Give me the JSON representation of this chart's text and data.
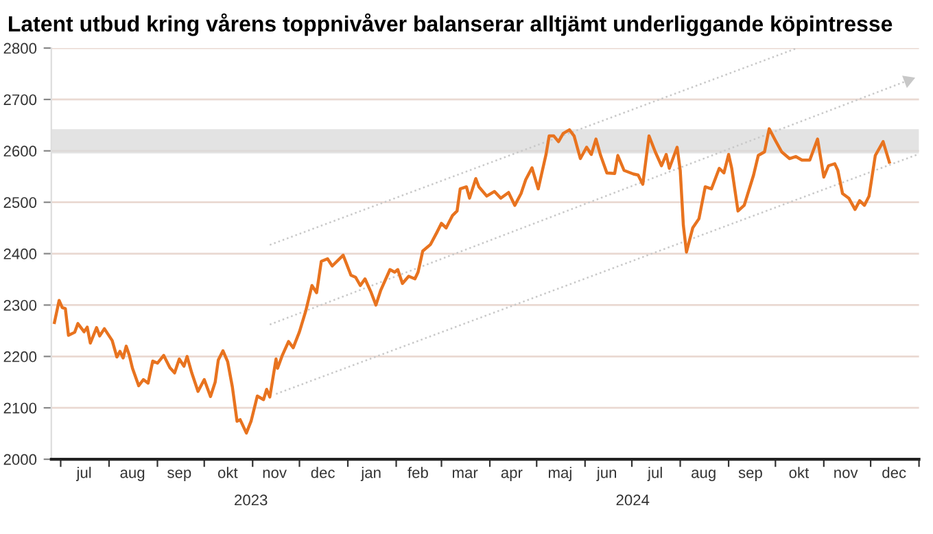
{
  "chart_data": {
    "type": "line",
    "title": "Latent utbud kring vårens toppnivåver balanserar alltjämt underliggande köpintresse",
    "x": [
      "2023-06-27",
      "2023-06-30",
      "2023-07-02",
      "2023-07-04",
      "2023-07-06",
      "2023-07-10",
      "2023-07-12",
      "2023-07-16",
      "2023-07-18",
      "2023-07-20",
      "2023-07-24",
      "2023-07-26",
      "2023-07-29",
      "2023-08-03",
      "2023-08-06",
      "2023-08-08",
      "2023-08-10",
      "2023-08-12",
      "2023-08-14",
      "2023-08-16",
      "2023-08-20",
      "2023-08-23",
      "2023-08-26",
      "2023-08-29",
      "2023-09-01",
      "2023-09-05",
      "2023-09-09",
      "2023-09-12",
      "2023-09-15",
      "2023-09-18",
      "2023-09-20",
      "2023-09-23",
      "2023-09-27",
      "2023-10-01",
      "2023-10-05",
      "2023-10-08",
      "2023-10-10",
      "2023-10-13",
      "2023-10-16",
      "2023-10-19",
      "2023-10-22",
      "2023-10-24",
      "2023-10-28",
      "2023-10-31",
      "2023-11-04",
      "2023-11-08",
      "2023-11-10",
      "2023-11-12",
      "2023-11-16",
      "2023-11-17",
      "2023-11-20",
      "2023-11-24",
      "2023-11-27",
      "2023-12-01",
      "2023-12-05",
      "2023-12-09",
      "2023-12-12",
      "2023-12-15",
      "2023-12-19",
      "2023-12-22",
      "2023-12-29",
      "2024-01-03",
      "2024-01-06",
      "2024-01-09",
      "2024-01-12",
      "2024-01-16",
      "2024-01-19",
      "2024-01-22",
      "2024-01-28",
      "2024-01-31",
      "2024-02-02",
      "2024-02-05",
      "2024-02-09",
      "2024-02-13",
      "2024-02-15",
      "2024-02-18",
      "2024-02-23",
      "2024-02-27",
      "2024-03-01",
      "2024-03-04",
      "2024-03-08",
      "2024-03-11",
      "2024-03-13",
      "2024-03-17",
      "2024-03-19",
      "2024-03-23",
      "2024-03-25",
      "2024-03-30",
      "2024-04-04",
      "2024-04-08",
      "2024-04-13",
      "2024-04-17",
      "2024-04-21",
      "2024-04-24",
      "2024-04-28",
      "2024-05-02",
      "2024-05-07",
      "2024-05-09",
      "2024-05-12",
      "2024-05-15",
      "2024-05-18",
      "2024-05-22",
      "2024-05-25",
      "2024-05-29",
      "2024-06-02",
      "2024-06-05",
      "2024-06-08",
      "2024-06-11",
      "2024-06-15",
      "2024-06-20",
      "2024-06-22",
      "2024-06-26",
      "2024-07-02",
      "2024-07-05",
      "2024-07-08",
      "2024-07-12",
      "2024-07-16",
      "2024-07-20",
      "2024-07-23",
      "2024-07-25",
      "2024-07-30",
      "2024-08-01",
      "2024-08-03",
      "2024-08-05",
      "2024-08-09",
      "2024-08-13",
      "2024-08-17",
      "2024-08-21",
      "2024-08-26",
      "2024-08-29",
      "2024-09-01",
      "2024-09-03",
      "2024-09-07",
      "2024-09-11",
      "2024-09-17",
      "2024-09-20",
      "2024-09-24",
      "2024-09-27",
      "2024-10-01",
      "2024-10-05",
      "2024-10-10",
      "2024-10-14",
      "2024-10-18",
      "2024-10-23",
      "2024-10-28",
      "2024-11-01",
      "2024-11-04",
      "2024-11-08",
      "2024-11-10",
      "2024-11-13",
      "2024-11-17",
      "2024-11-21",
      "2024-11-24",
      "2024-11-27",
      "2024-11-30",
      "2024-12-04",
      "2024-12-09",
      "2024-12-13"
    ],
    "series": [
      {
        "color": "#e8731f",
        "values": [
          2266,
          2309,
          2295,
          2293,
          2241,
          2247,
          2264,
          2248,
          2257,
          2226,
          2256,
          2240,
          2254,
          2231,
          2199,
          2210,
          2197,
          2220,
          2202,
          2177,
          2143,
          2155,
          2148,
          2191,
          2187,
          2202,
          2178,
          2168,
          2195,
          2181,
          2200,
          2168,
          2132,
          2155,
          2122,
          2150,
          2193,
          2211,
          2190,
          2141,
          2074,
          2077,
          2051,
          2074,
          2123,
          2116,
          2136,
          2121,
          2195,
          2177,
          2202,
          2229,
          2217,
          2248,
          2288,
          2338,
          2324,
          2385,
          2390,
          2376,
          2397,
          2358,
          2354,
          2338,
          2351,
          2324,
          2300,
          2328,
          2369,
          2364,
          2369,
          2342,
          2356,
          2351,
          2364,
          2405,
          2418,
          2441,
          2459,
          2450,
          2474,
          2483,
          2526,
          2530,
          2508,
          2546,
          2530,
          2512,
          2521,
          2508,
          2519,
          2494,
          2517,
          2544,
          2567,
          2526,
          2593,
          2629,
          2629,
          2618,
          2634,
          2641,
          2629,
          2585,
          2607,
          2593,
          2623,
          2591,
          2557,
          2556,
          2591,
          2562,
          2555,
          2553,
          2535,
          2629,
          2598,
          2571,
          2593,
          2566,
          2607,
          2562,
          2455,
          2403,
          2450,
          2468,
          2530,
          2526,
          2566,
          2557,
          2593,
          2566,
          2483,
          2494,
          2553,
          2591,
          2598,
          2643,
          2620,
          2598,
          2585,
          2589,
          2582,
          2582,
          2623,
          2549,
          2571,
          2575,
          2562,
          2517,
          2508,
          2486,
          2503,
          2494,
          2512,
          2591,
          2618,
          2578
        ]
      },
      {
        "x": [
          "2023-11-12",
          "2024-10-15"
        ],
        "values": [
          2417,
          2800
        ],
        "color": "#c8c8c8",
        "line_style": "dotted"
      },
      {
        "x": [
          "2023-11-12",
          "2024-12-25"
        ],
        "values": [
          2262,
          2737
        ],
        "color": "#c8c8c8",
        "line_style": "dotted",
        "marker": "triangle"
      },
      {
        "x": [
          "2023-11-16",
          "2025-01-01"
        ],
        "values": [
          2127,
          2594
        ],
        "color": "#c8c8c8",
        "line_style": "dotted"
      }
    ],
    "bands": [
      {
        "axis": "y",
        "from": 2595,
        "to": 2642,
        "color": "#d9d9d9"
      }
    ],
    "xlim": [
      "2023-06-25",
      "2025-01-01"
    ],
    "xticks": [
      {
        "value": "2023-07-01",
        "label": null
      },
      {
        "value": "2023-08-01",
        "label": null
      },
      {
        "value": "2023-09-01",
        "label": null
      },
      {
        "value": "2023-10-01",
        "label": null
      },
      {
        "value": "2023-11-01",
        "label": null
      },
      {
        "value": "2023-12-01",
        "label": null
      },
      {
        "value": "2024-01-01",
        "label": null
      },
      {
        "value": "2024-02-01",
        "label": null
      },
      {
        "value": "2024-03-01",
        "label": null
      },
      {
        "value": "2024-04-01",
        "label": null
      },
      {
        "value": "2024-05-01",
        "label": null
      },
      {
        "value": "2024-06-01",
        "label": null
      },
      {
        "value": "2024-07-01",
        "label": null
      },
      {
        "value": "2024-08-01",
        "label": null
      },
      {
        "value": "2024-09-01",
        "label": null
      },
      {
        "value": "2024-10-01",
        "label": null
      },
      {
        "value": "2024-11-01",
        "label": null
      },
      {
        "value": "2024-12-01",
        "label": null
      },
      {
        "value": "2025-01-01",
        "label": null
      },
      {
        "value": "2023-07-16",
        "label": "jul"
      },
      {
        "value": "2023-08-16",
        "label": "aug"
      },
      {
        "value": "2023-09-15",
        "label": "sep"
      },
      {
        "value": "2023-10-16",
        "label": "okt"
      },
      {
        "value": "2023-11-15",
        "label": "nov"
      },
      {
        "value": "2023-12-16",
        "label": "dec"
      },
      {
        "value": "2024-01-16",
        "label": "jan"
      },
      {
        "value": "2024-02-15",
        "label": "feb"
      },
      {
        "value": "2024-03-16",
        "label": "mar"
      },
      {
        "value": "2024-04-15",
        "label": "apr"
      },
      {
        "value": "2024-05-16",
        "label": "maj"
      },
      {
        "value": "2024-06-15",
        "label": "jun"
      },
      {
        "value": "2024-07-16",
        "label": "jul"
      },
      {
        "value": "2024-08-16",
        "label": "aug"
      },
      {
        "value": "2024-09-15",
        "label": "sep"
      },
      {
        "value": "2024-10-16",
        "label": "okt"
      },
      {
        "value": "2024-11-15",
        "label": "nov"
      },
      {
        "value": "2024-12-16",
        "label": "dec"
      }
    ],
    "annotations": [
      "2023",
      "2024"
    ],
    "ylim": [
      2000,
      2800
    ],
    "yticks": [
      2000,
      2100,
      2200,
      2300,
      2400,
      2500,
      2600,
      2700,
      2800
    ],
    "grid": "y",
    "line_style": "solid",
    "marker": "none"
  }
}
